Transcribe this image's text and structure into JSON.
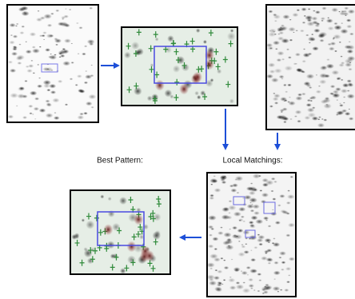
{
  "labels": {
    "best_pattern": "Best Pattern:",
    "local_matchings": "Local Matchings:"
  }
}
